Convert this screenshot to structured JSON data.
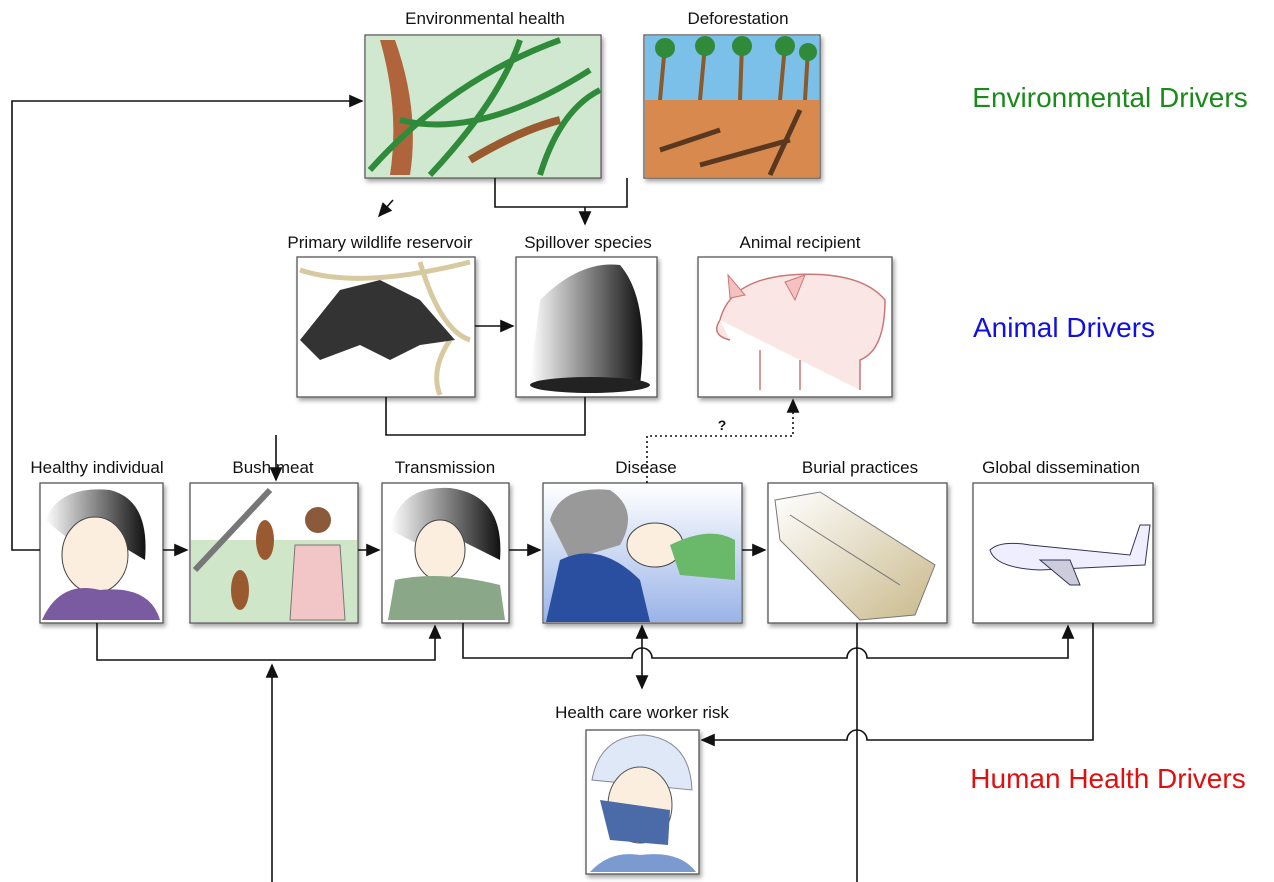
{
  "nodes": [
    {
      "label": "Environmental health"
    },
    {
      "label": "Deforestation"
    },
    {
      "label": "Primary wildlife reservoir"
    },
    {
      "label": "Spillover species"
    },
    {
      "label": "Animal recipient"
    },
    {
      "label": "Healthy individual"
    },
    {
      "label": "Bush meat"
    },
    {
      "label": "Transmission"
    },
    {
      "label": "Disease"
    },
    {
      "label": "Burial practices"
    },
    {
      "label": "Global dissemination"
    },
    {
      "label": "Health care worker risk"
    }
  ],
  "drivers": [
    {
      "label": "Environmental Drivers",
      "color": "#1a8a1a"
    },
    {
      "label": "Animal Drivers",
      "color": "#1010e0"
    },
    {
      "label": "Human Health Drivers",
      "color": "#e01010"
    }
  ],
  "annotation": "?"
}
